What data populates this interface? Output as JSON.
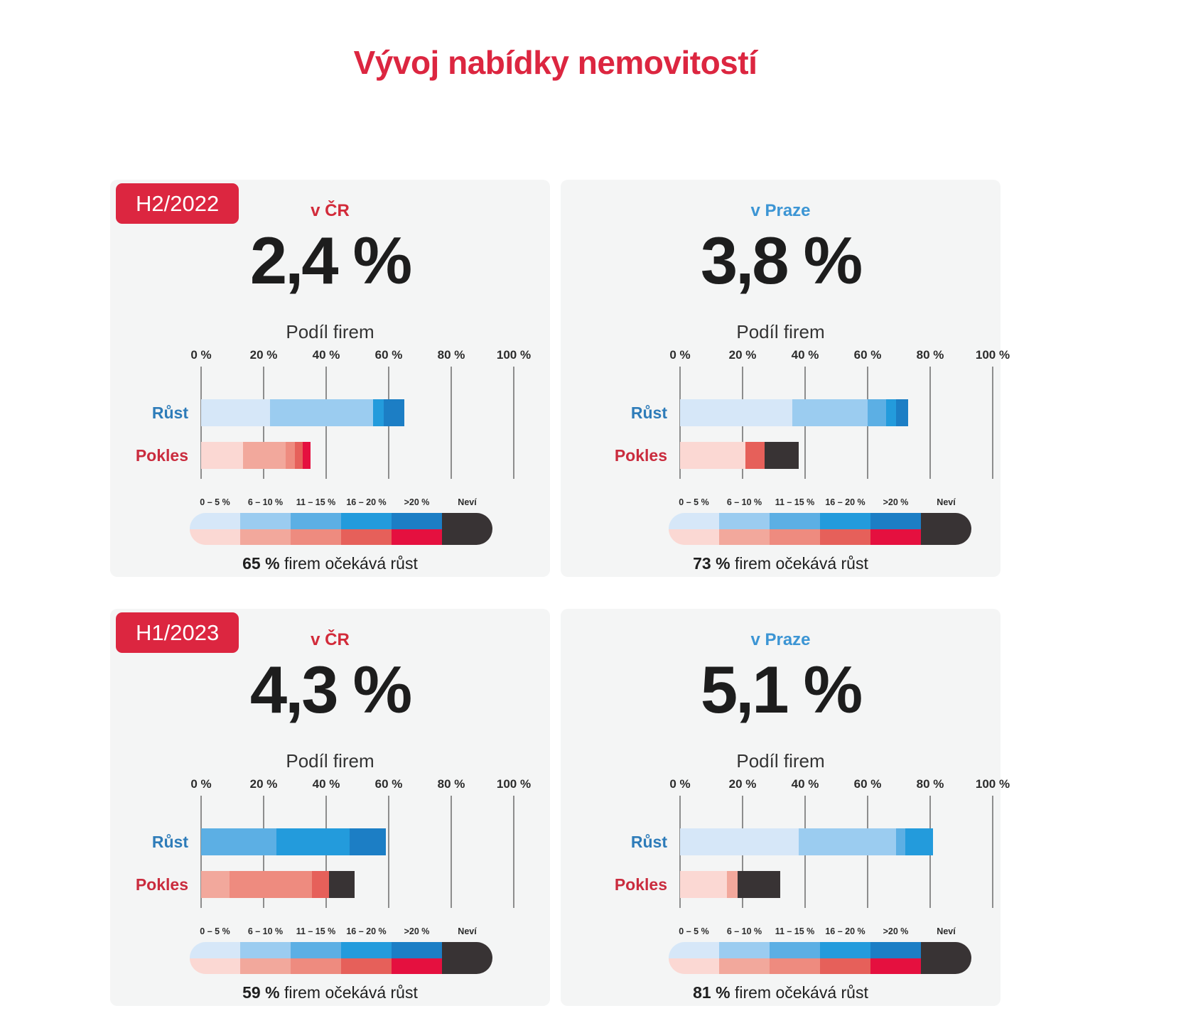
{
  "page_title": "Vývoj nabídky nemovitostí",
  "axis": {
    "title": "Podíl firem",
    "ticks": [
      "0 %",
      "20 %",
      "40 %",
      "60 %",
      "80 %",
      "100 %"
    ],
    "xlim": [
      0,
      100
    ],
    "grid": true
  },
  "legend": {
    "categories": [
      "0 – 5 %",
      "6 – 10 %",
      "11 – 15 %",
      "16 – 20 %",
      ">20 %",
      "Neví"
    ],
    "blue_scale": [
      "#d6e7f8",
      "#9bccf0",
      "#5cafe4",
      "#239bdc",
      "#1c7ec5"
    ],
    "red_scale": [
      "#fbd8d3",
      "#f2a89c",
      "#ee8b7f",
      "#e6605a",
      "#e5103f"
    ],
    "nevi_color": "#383334"
  },
  "colors": {
    "page_bg": "#ffffff",
    "panel_bg": "#f4f5f5",
    "title_red": "#dc2640",
    "badge_bg": "#dc2640",
    "badge_text": "#ffffff",
    "grid_line": "#8d8d8d",
    "headline_text": "#1d1d1d"
  },
  "chart_data": [
    {
      "id": "h2-2022-cr",
      "type": "bar",
      "orientation": "horizontal",
      "stacked": true,
      "badge": "H2/2022",
      "region": "v ČR",
      "region_color": "#d22b3a",
      "headline": "2,4 %",
      "axis_title": "Podíl firem",
      "xlim": [
        0,
        100
      ],
      "rows": [
        {
          "label": "Růst",
          "label_color": "#2e7cb9",
          "segments": [
            {
              "category": "0 – 5 %",
              "value": 22,
              "color": "#d6e7f8"
            },
            {
              "category": "6 – 10 %",
              "value": 33,
              "color": "#9bccf0"
            },
            {
              "category": "16 – 20 %",
              "value": 3.5,
              "color": "#239bdc"
            },
            {
              "category": ">20 %",
              "value": 6.5,
              "color": "#1c7ec5"
            }
          ]
        },
        {
          "label": "Pokles",
          "label_color": "#ca2c3e",
          "segments": [
            {
              "category": "0 – 5 %",
              "value": 13.5,
              "color": "#fbd8d3"
            },
            {
              "category": "6 – 10 %",
              "value": 13.5,
              "color": "#f2a89c"
            },
            {
              "category": "11 – 15 %",
              "value": 3,
              "color": "#ee8b7f"
            },
            {
              "category": "16 – 20 %",
              "value": 2.5,
              "color": "#e6605a"
            },
            {
              "category": ">20 %",
              "value": 2.5,
              "color": "#e5103f"
            }
          ]
        }
      ],
      "summary_value": "65 %",
      "summary_text": "firem očekává růst"
    },
    {
      "id": "h2-2022-praha",
      "type": "bar",
      "orientation": "horizontal",
      "stacked": true,
      "badge": null,
      "region": "v Praze",
      "region_color": "#3c95d4",
      "headline": "3,8 %",
      "axis_title": "Podíl firem",
      "xlim": [
        0,
        100
      ],
      "rows": [
        {
          "label": "Růst",
          "label_color": "#2e7cb9",
          "segments": [
            {
              "category": "0 – 5 %",
              "value": 36,
              "color": "#d6e7f8"
            },
            {
              "category": "6 – 10 %",
              "value": 24,
              "color": "#9bccf0"
            },
            {
              "category": "11 – 15 %",
              "value": 6,
              "color": "#5cafe4"
            },
            {
              "category": "16 – 20 %",
              "value": 3,
              "color": "#239bdc"
            },
            {
              "category": ">20 %",
              "value": 4,
              "color": "#1c7ec5"
            }
          ]
        },
        {
          "label": "Pokles",
          "label_color": "#ca2c3e",
          "segments": [
            {
              "category": "0 – 5 %",
              "value": 21,
              "color": "#fbd8d3"
            },
            {
              "category": "16 – 20 %",
              "value": 6,
              "color": "#e6605a"
            },
            {
              "category": "Neví",
              "value": 11,
              "color": "#383334"
            }
          ]
        }
      ],
      "summary_value": "73 %",
      "summary_text": "firem očekává růst"
    },
    {
      "id": "h1-2023-cr",
      "type": "bar",
      "orientation": "horizontal",
      "stacked": true,
      "badge": "H1/2023",
      "region": "v ČR",
      "region_color": "#d22b3a",
      "headline": "4,3 %",
      "axis_title": "Podíl firem",
      "xlim": [
        0,
        100
      ],
      "rows": [
        {
          "label": "Růst",
          "label_color": "#2e7cb9",
          "segments": [
            {
              "category": "11 – 15 %",
              "value": 24,
              "color": "#5cafe4"
            },
            {
              "category": "16 – 20 %",
              "value": 23.5,
              "color": "#239bdc"
            },
            {
              "category": ">20 %",
              "value": 11.5,
              "color": "#1c7ec5"
            }
          ]
        },
        {
          "label": "Pokles",
          "label_color": "#ca2c3e",
          "segments": [
            {
              "category": "6 – 10 %",
              "value": 9,
              "color": "#f2a89c"
            },
            {
              "category": "11 – 15 %",
              "value": 26.5,
              "color": "#ee8b7f"
            },
            {
              "category": "16 – 20 %",
              "value": 5.5,
              "color": "#e6605a"
            },
            {
              "category": "Neví",
              "value": 8,
              "color": "#383334"
            }
          ]
        }
      ],
      "summary_value": "59 %",
      "summary_text": "firem očekává růst"
    },
    {
      "id": "h1-2023-praha",
      "type": "bar",
      "orientation": "horizontal",
      "stacked": true,
      "badge": null,
      "region": "v Praze",
      "region_color": "#3c95d4",
      "headline": "5,1 %",
      "axis_title": "Podíl firem",
      "xlim": [
        0,
        100
      ],
      "rows": [
        {
          "label": "Růst",
          "label_color": "#2e7cb9",
          "segments": [
            {
              "category": "0 – 5 %",
              "value": 38,
              "color": "#d6e7f8"
            },
            {
              "category": "6 – 10 %",
              "value": 31,
              "color": "#9bccf0"
            },
            {
              "category": "11 – 15 %",
              "value": 3,
              "color": "#5cafe4"
            },
            {
              "category": "16 – 20 %",
              "value": 9,
              "color": "#239bdc"
            }
          ]
        },
        {
          "label": "Pokles",
          "label_color": "#ca2c3e",
          "segments": [
            {
              "category": "0 – 5 %",
              "value": 15,
              "color": "#fbd8d3"
            },
            {
              "category": "6 – 10 %",
              "value": 3.5,
              "color": "#f2a89c"
            },
            {
              "category": "Neví",
              "value": 13.5,
              "color": "#383334"
            }
          ]
        }
      ],
      "summary_value": "81 %",
      "summary_text": "firem očekává růst"
    }
  ]
}
